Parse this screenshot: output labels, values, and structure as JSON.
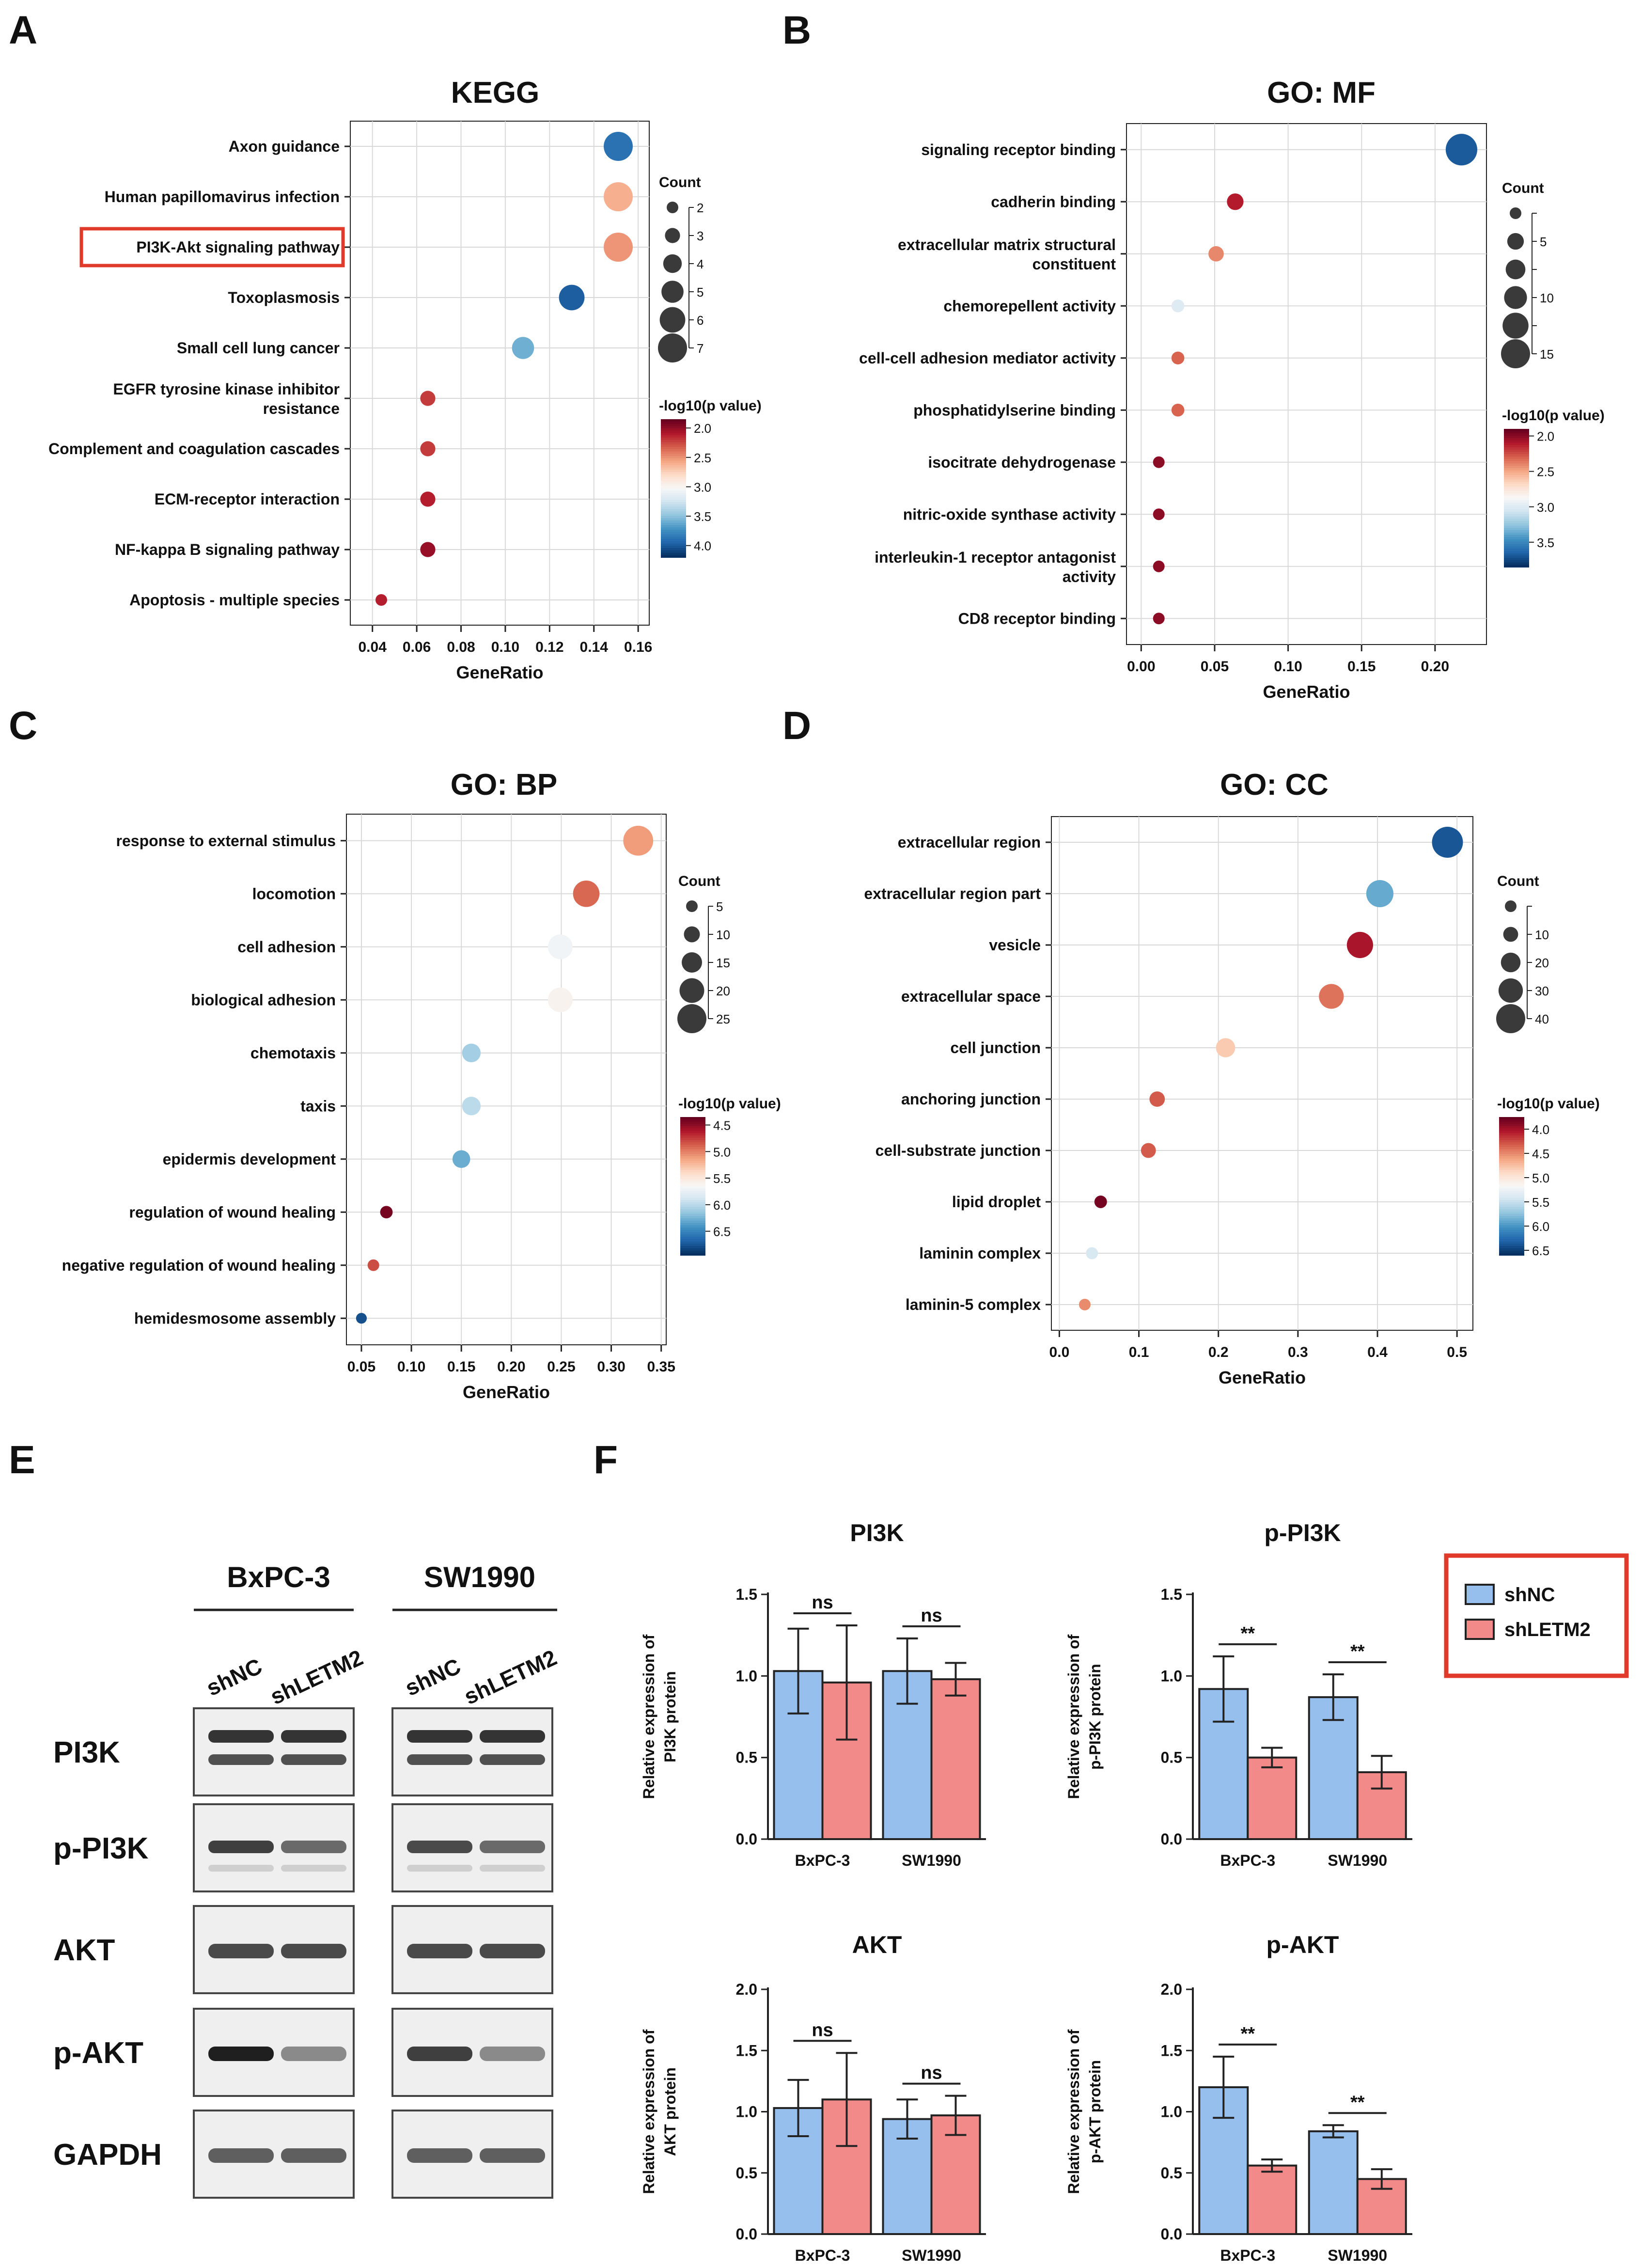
{
  "panel_labels": [
    "A",
    "B",
    "C",
    "D",
    "E",
    "F"
  ],
  "colors": {
    "shNC": "#96BFEE",
    "shLETM2": "#F28A8A",
    "highlight_box": "#E23A2A",
    "grid": "#d9d9d9",
    "axis": "#222222"
  },
  "chart_data": [
    {
      "id": "kegg",
      "panel": "A",
      "type": "scatter",
      "title": "KEGG",
      "xlabel": "GeneRatio",
      "xlim": [
        0.03,
        0.165
      ],
      "xticks": [
        "0.04",
        "0.06",
        "0.08",
        "0.10",
        "0.12",
        "0.14",
        "0.16"
      ],
      "highlighted_term": "PI3K-Akt signaling pathway",
      "terms": [
        {
          "label": "Axon guidance",
          "x": 0.151,
          "count": 7,
          "p": 3.9
        },
        {
          "label": "Human papillomavirus infection",
          "x": 0.151,
          "count": 7,
          "p": 2.6
        },
        {
          "label": "PI3K-Akt signaling pathway",
          "x": 0.151,
          "count": 7,
          "p": 2.5
        },
        {
          "label": "Toxoplasmosis",
          "x": 0.13,
          "count": 6,
          "p": 4.0
        },
        {
          "label": "Small cell lung cancer",
          "x": 0.108,
          "count": 5,
          "p": 3.6
        },
        {
          "label": [
            "EGFR tyrosine kinase inhibitor",
            "resistance"
          ],
          "x": 0.065,
          "count": 3,
          "p": 2.2
        },
        {
          "label": "Complement and coagulation cascades",
          "x": 0.065,
          "count": 3,
          "p": 2.2
        },
        {
          "label": "ECM-receptor interaction",
          "x": 0.065,
          "count": 3,
          "p": 2.1
        },
        {
          "label": "NF-kappa B signaling pathway",
          "x": 0.065,
          "count": 3,
          "p": 2.0
        },
        {
          "label": "Apoptosis - multiple species",
          "x": 0.044,
          "count": 2,
          "p": 2.1
        }
      ],
      "size_legend": {
        "title": "Count",
        "labels": [
          "2",
          "3",
          "4",
          "5",
          "6",
          "7"
        ],
        "values": [
          2,
          3,
          4,
          5,
          6,
          7
        ]
      },
      "color_legend": {
        "title": "-log10(p value)",
        "labels": [
          "2.0",
          "2.5",
          "3.0",
          "3.5",
          "4.0"
        ],
        "values": [
          2.0,
          2.5,
          3.0,
          3.5,
          4.0
        ],
        "range": [
          1.85,
          4.2
        ]
      }
    },
    {
      "id": "go_mf",
      "panel": "B",
      "type": "scatter",
      "title": "GO: MF",
      "xlabel": "GeneRatio",
      "xlim": [
        -0.01,
        0.235
      ],
      "xticks": [
        "0.00",
        "0.05",
        "0.10",
        "0.15",
        "0.20"
      ],
      "terms": [
        {
          "label": "signaling receptor binding",
          "x": 0.218,
          "count": 17,
          "p": 3.7
        },
        {
          "label": "cadherin binding",
          "x": 0.064,
          "count": 5,
          "p": 2.1
        },
        {
          "label": [
            "extracellular matrix structural",
            "constituent"
          ],
          "x": 0.051,
          "count": 4,
          "p": 2.4
        },
        {
          "label": "chemorepellent activity",
          "x": 0.025,
          "count": 2,
          "p": 3.0
        },
        {
          "label": "cell-cell adhesion mediator activity",
          "x": 0.025,
          "count": 2,
          "p": 2.3
        },
        {
          "label": "phosphatidylserine binding",
          "x": 0.025,
          "count": 2,
          "p": 2.3
        },
        {
          "label": "isocitrate dehydrogenase",
          "x": 0.012,
          "count": 1,
          "p": 2.0
        },
        {
          "label": "nitric-oxide synthase activity",
          "x": 0.012,
          "count": 1,
          "p": 2.0
        },
        {
          "label": [
            "interleukin-1 receptor antagonist",
            "activity"
          ],
          "x": 0.012,
          "count": 1,
          "p": 2.0
        },
        {
          "label": "CD8 receptor binding",
          "x": 0.012,
          "count": 1,
          "p": 2.0
        }
      ],
      "size_legend": {
        "title": "Count",
        "labels": [
          "",
          "5",
          "",
          "10",
          "",
          "15"
        ],
        "values": [
          1,
          5,
          7.5,
          10,
          12.5,
          15
        ]
      },
      "color_legend": {
        "title": "-log10(p value)",
        "labels": [
          "2.0",
          "2.5",
          "3.0",
          "3.5"
        ],
        "values": [
          2.0,
          2.5,
          3.0,
          3.5
        ],
        "range": [
          1.9,
          3.85
        ]
      }
    },
    {
      "id": "go_bp",
      "panel": "C",
      "type": "scatter",
      "title": "GO: BP",
      "xlabel": "GeneRatio",
      "xlim": [
        0.035,
        0.355
      ],
      "xticks": [
        "0.05",
        "0.10",
        "0.15",
        "0.20",
        "0.25",
        "0.30",
        "0.35"
      ],
      "terms": [
        {
          "label": "response to external stimulus",
          "x": 0.327,
          "count": 26,
          "p": 5.1
        },
        {
          "label": "locomotion",
          "x": 0.275,
          "count": 22,
          "p": 4.9
        },
        {
          "label": "cell adhesion",
          "x": 0.249,
          "count": 20,
          "p": 5.7
        },
        {
          "label": "biological adhesion",
          "x": 0.249,
          "count": 20,
          "p": 5.6
        },
        {
          "label": "chemotaxis",
          "x": 0.16,
          "count": 13,
          "p": 6.1
        },
        {
          "label": "taxis",
          "x": 0.16,
          "count": 13,
          "p": 6.0
        },
        {
          "label": "epidermis development",
          "x": 0.15,
          "count": 12,
          "p": 6.3
        },
        {
          "label": "regulation of wound healing",
          "x": 0.075,
          "count": 6,
          "p": 4.4
        },
        {
          "label": "negative regulation of wound healing",
          "x": 0.062,
          "count": 5,
          "p": 4.8
        },
        {
          "label": "hemidesmosome assembly",
          "x": 0.05,
          "count": 4,
          "p": 6.8
        }
      ],
      "size_legend": {
        "title": "Count",
        "labels": [
          "5",
          "10",
          "15",
          "20",
          "25"
        ],
        "values": [
          5,
          10,
          15,
          20,
          25
        ]
      },
      "color_legend": {
        "title": "-log10(p value)",
        "labels": [
          "4.5",
          "5.0",
          "5.5",
          "6.0",
          "6.5"
        ],
        "values": [
          4.5,
          5.0,
          5.5,
          6.0,
          6.5
        ],
        "range": [
          4.35,
          6.95
        ]
      }
    },
    {
      "id": "go_cc",
      "panel": "D",
      "type": "scatter",
      "title": "GO: CC",
      "xlabel": "GeneRatio",
      "xlim": [
        -0.01,
        0.52
      ],
      "xticks": [
        "0.0",
        "0.1",
        "0.2",
        "0.3",
        "0.4",
        "0.5"
      ],
      "terms": [
        {
          "label": "extracellular region",
          "x": 0.488,
          "count": 44,
          "p": 6.4
        },
        {
          "label": "extracellular region part",
          "x": 0.403,
          "count": 36,
          "p": 5.9
        },
        {
          "label": "vesicle",
          "x": 0.378,
          "count": 34,
          "p": 4.0
        },
        {
          "label": "extracellular space",
          "x": 0.342,
          "count": 31,
          "p": 4.4
        },
        {
          "label": "cell junction",
          "x": 0.209,
          "count": 19,
          "p": 4.8
        },
        {
          "label": "anchoring junction",
          "x": 0.123,
          "count": 11,
          "p": 4.3
        },
        {
          "label": "cell-substrate junction",
          "x": 0.112,
          "count": 10,
          "p": 4.3
        },
        {
          "label": "lipid droplet",
          "x": 0.052,
          "count": 5,
          "p": 3.8
        },
        {
          "label": "laminin complex",
          "x": 0.041,
          "count": 4,
          "p": 5.4
        },
        {
          "label": "laminin-5 complex",
          "x": 0.032,
          "count": 3,
          "p": 4.5
        }
      ],
      "size_legend": {
        "title": "Count",
        "labels": [
          "",
          "10",
          "20",
          "30",
          "40"
        ],
        "values": [
          3,
          10,
          20,
          30,
          40
        ]
      },
      "color_legend": {
        "title": "-log10(p value)",
        "labels": [
          "4.0",
          "4.5",
          "5.0",
          "5.5",
          "6.0",
          "6.5"
        ],
        "values": [
          4.0,
          4.5,
          5.0,
          5.5,
          6.0,
          6.5
        ],
        "range": [
          3.75,
          6.6
        ]
      }
    },
    {
      "id": "pi3k",
      "panel": "F",
      "type": "bar",
      "title": "PI3K",
      "ylabel": [
        "Relative expression of",
        "PI3K protein"
      ],
      "categories": [
        "BxPC-3",
        "SW1990"
      ],
      "ylim": [
        0,
        1.5
      ],
      "yticks": [
        "0.0",
        "0.5",
        "1.0",
        "1.5"
      ],
      "series": [
        {
          "name": "shNC",
          "values": [
            1.03,
            1.03
          ],
          "errors": [
            0.26,
            0.2
          ]
        },
        {
          "name": "shLETM2",
          "values": [
            0.96,
            0.98
          ],
          "errors": [
            0.35,
            0.1
          ]
        }
      ],
      "significance": [
        "ns",
        "ns"
      ]
    },
    {
      "id": "p_pi3k",
      "panel": "F",
      "type": "bar",
      "title": "p-PI3K",
      "ylabel": [
        "Relative expression of",
        "p-PI3K protein"
      ],
      "categories": [
        "BxPC-3",
        "SW1990"
      ],
      "ylim": [
        0,
        1.5
      ],
      "yticks": [
        "0.0",
        "0.5",
        "1.0",
        "1.5"
      ],
      "series": [
        {
          "name": "shNC",
          "values": [
            0.92,
            0.87
          ],
          "errors": [
            0.2,
            0.14
          ]
        },
        {
          "name": "shLETM2",
          "values": [
            0.5,
            0.41
          ],
          "errors": [
            0.06,
            0.1
          ]
        }
      ],
      "significance": [
        "**",
        "**"
      ]
    },
    {
      "id": "akt",
      "panel": "F",
      "type": "bar",
      "title": "AKT",
      "ylabel": [
        "Relative expression of",
        "AKT protein"
      ],
      "categories": [
        "BxPC-3",
        "SW1990"
      ],
      "ylim": [
        0,
        2.0
      ],
      "yticks": [
        "0.0",
        "0.5",
        "1.0",
        "1.5",
        "2.0"
      ],
      "series": [
        {
          "name": "shNC",
          "values": [
            1.03,
            0.94
          ],
          "errors": [
            0.23,
            0.16
          ]
        },
        {
          "name": "shLETM2",
          "values": [
            1.1,
            0.97
          ],
          "errors": [
            0.38,
            0.16
          ]
        }
      ],
      "significance": [
        "ns",
        "ns"
      ]
    },
    {
      "id": "p_akt",
      "panel": "F",
      "type": "bar",
      "title": "p-AKT",
      "ylabel": [
        "Relative expression of",
        "p-AKT protein"
      ],
      "categories": [
        "BxPC-3",
        "SW1990"
      ],
      "ylim": [
        0,
        2.0
      ],
      "yticks": [
        "0.0",
        "0.5",
        "1.0",
        "1.5",
        "2.0"
      ],
      "series": [
        {
          "name": "shNC",
          "values": [
            1.2,
            0.84
          ],
          "errors": [
            0.25,
            0.05
          ]
        },
        {
          "name": "shLETM2",
          "values": [
            0.56,
            0.45
          ],
          "errors": [
            0.05,
            0.08
          ]
        }
      ],
      "significance": [
        "**",
        "**"
      ]
    }
  ],
  "bar_legend": {
    "entries": [
      "shNC",
      "shLETM2"
    ]
  },
  "western_blot": {
    "cell_lines": [
      "BxPC-3",
      "SW1990"
    ],
    "lanes": [
      "shNC",
      "shLETM2",
      "shNC",
      "shLETM2"
    ],
    "proteins": [
      "PI3K",
      "p-PI3K",
      "AKT",
      "p-AKT",
      "GAPDH"
    ],
    "band_intensity": [
      [
        [
          0.85,
          0.85
        ],
        [
          0.85,
          0.85
        ]
      ],
      [
        [
          0.8,
          0.6
        ],
        [
          0.75,
          0.6
        ]
      ],
      [
        [
          0.75,
          0.75
        ],
        [
          0.75,
          0.75
        ]
      ],
      [
        [
          0.95,
          0.45
        ],
        [
          0.8,
          0.45
        ]
      ],
      [
        [
          0.65,
          0.65
        ],
        [
          0.65,
          0.65
        ]
      ]
    ]
  }
}
